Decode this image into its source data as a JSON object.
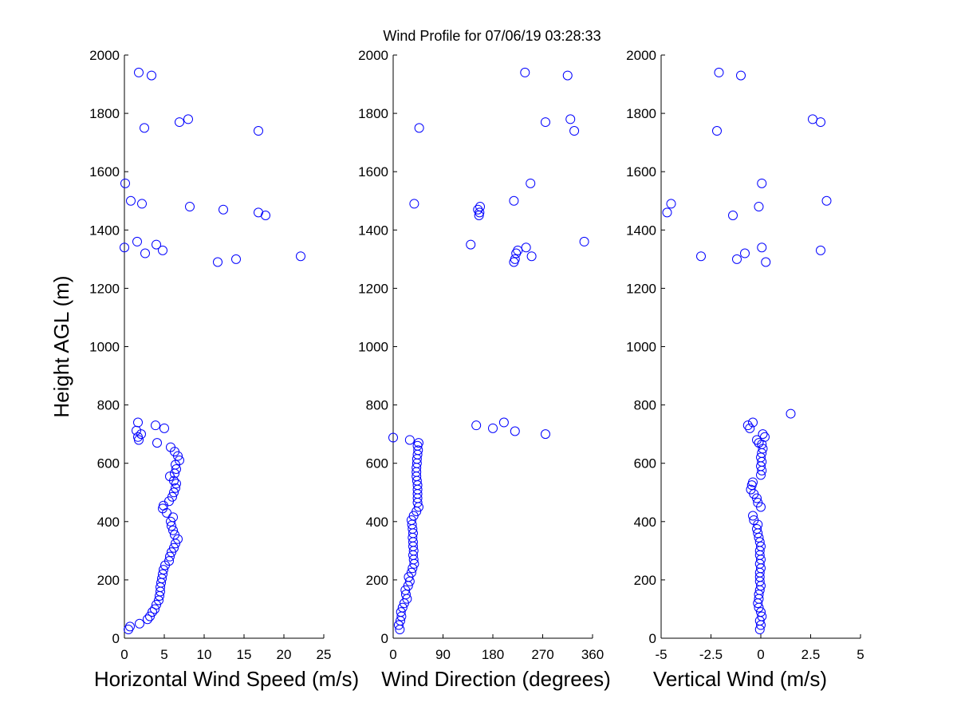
{
  "title": "Wind Profile for  07/06/19 03:28:33",
  "colors": {
    "marker": "#0000ff",
    "axis": "#000000",
    "background": "#ffffff"
  },
  "chart_data": [
    {
      "type": "scatter",
      "title": "",
      "xlabel": "Horizontal Wind Speed (m/s)",
      "ylabel": "Height AGL (m)",
      "xlim": [
        0,
        25
      ],
      "ylim": [
        0,
        2000
      ],
      "xticks": [
        0,
        5,
        10,
        15,
        20,
        25
      ],
      "xtick_labels": [
        "0",
        "5",
        "10",
        "15",
        "20",
        "25"
      ],
      "yticks": [
        0,
        200,
        400,
        600,
        800,
        1000,
        1200,
        1400,
        1600,
        1800,
        2000
      ],
      "ytick_labels": [
        "0",
        "200",
        "400",
        "600",
        "800",
        "1000",
        "1200",
        "1400",
        "1600",
        "1800",
        "2000"
      ],
      "grid": false,
      "marker": "open-circle",
      "points": [
        [
          0.5,
          30
        ],
        [
          0.7,
          40
        ],
        [
          1.9,
          50
        ],
        [
          2.9,
          65
        ],
        [
          3.2,
          75
        ],
        [
          3.5,
          90
        ],
        [
          3.8,
          100
        ],
        [
          4.0,
          115
        ],
        [
          4.3,
          130
        ],
        [
          4.4,
          145
        ],
        [
          4.5,
          160
        ],
        [
          4.5,
          175
        ],
        [
          4.6,
          190
        ],
        [
          4.7,
          205
        ],
        [
          4.8,
          220
        ],
        [
          4.9,
          235
        ],
        [
          5.1,
          250
        ],
        [
          5.6,
          265
        ],
        [
          5.7,
          280
        ],
        [
          5.9,
          295
        ],
        [
          6.2,
          310
        ],
        [
          6.4,
          325
        ],
        [
          6.7,
          340
        ],
        [
          6.3,
          355
        ],
        [
          6.1,
          370
        ],
        [
          5.9,
          385
        ],
        [
          5.8,
          400
        ],
        [
          6.1,
          415
        ],
        [
          5.3,
          430
        ],
        [
          4.8,
          445
        ],
        [
          4.9,
          455
        ],
        [
          5.6,
          470
        ],
        [
          6.0,
          485
        ],
        [
          6.2,
          500
        ],
        [
          6.4,
          515
        ],
        [
          6.5,
          530
        ],
        [
          6.2,
          540
        ],
        [
          5.7,
          555
        ],
        [
          6.3,
          565
        ],
        [
          6.5,
          580
        ],
        [
          6.4,
          595
        ],
        [
          6.9,
          610
        ],
        [
          6.7,
          625
        ],
        [
          6.3,
          640
        ],
        [
          5.8,
          655
        ],
        [
          1.8,
          680
        ],
        [
          1.7,
          690
        ],
        [
          2.1,
          700
        ],
        [
          1.5,
          712
        ],
        [
          5.0,
          720
        ],
        [
          3.9,
          730
        ],
        [
          1.7,
          740
        ],
        [
          4.1,
          670
        ],
        [
          0.0,
          1340
        ],
        [
          1.6,
          1360
        ],
        [
          2.6,
          1320
        ],
        [
          4.0,
          1350
        ],
        [
          4.8,
          1330
        ],
        [
          11.7,
          1290
        ],
        [
          14.0,
          1300
        ],
        [
          22.1,
          1310
        ],
        [
          8.2,
          1480
        ],
        [
          12.4,
          1470
        ],
        [
          16.8,
          1460
        ],
        [
          17.7,
          1450
        ],
        [
          2.2,
          1490
        ],
        [
          0.8,
          1500
        ],
        [
          0.1,
          1560
        ],
        [
          2.5,
          1750
        ],
        [
          6.9,
          1770
        ],
        [
          8.0,
          1780
        ],
        [
          16.8,
          1740
        ],
        [
          1.8,
          1940
        ],
        [
          3.4,
          1930
        ]
      ]
    },
    {
      "type": "scatter",
      "title": "",
      "xlabel": "Wind Direction (degrees)",
      "ylabel": "",
      "xlim": [
        0,
        360
      ],
      "ylim": [
        0,
        2000
      ],
      "xticks": [
        0,
        90,
        180,
        270,
        360
      ],
      "xtick_labels": [
        "0",
        "90",
        "180",
        "270",
        "360"
      ],
      "yticks": [
        0,
        200,
        400,
        600,
        800,
        1000,
        1200,
        1400,
        1600,
        1800,
        2000
      ],
      "ytick_labels": [
        "0",
        "200",
        "400",
        "600",
        "800",
        "1000",
        "1200",
        "1400",
        "1600",
        "1800",
        "2000"
      ],
      "grid": false,
      "marker": "open-circle",
      "points": [
        [
          12,
          30
        ],
        [
          10,
          45
        ],
        [
          13,
          60
        ],
        [
          15,
          75
        ],
        [
          14,
          90
        ],
        [
          17,
          105
        ],
        [
          20,
          120
        ],
        [
          25,
          135
        ],
        [
          23,
          150
        ],
        [
          22,
          165
        ],
        [
          27,
          180
        ],
        [
          30,
          195
        ],
        [
          28,
          210
        ],
        [
          33,
          225
        ],
        [
          35,
          240
        ],
        [
          38,
          255
        ],
        [
          37,
          270
        ],
        [
          36,
          285
        ],
        [
          37,
          300
        ],
        [
          36,
          315
        ],
        [
          36,
          330
        ],
        [
          35,
          345
        ],
        [
          36,
          360
        ],
        [
          35,
          375
        ],
        [
          34,
          390
        ],
        [
          33,
          405
        ],
        [
          37,
          420
        ],
        [
          42,
          435
        ],
        [
          46,
          450
        ],
        [
          44,
          465
        ],
        [
          44,
          480
        ],
        [
          44,
          495
        ],
        [
          44,
          510
        ],
        [
          44,
          525
        ],
        [
          43,
          540
        ],
        [
          42,
          555
        ],
        [
          42,
          570
        ],
        [
          42,
          585
        ],
        [
          43,
          600
        ],
        [
          43,
          615
        ],
        [
          44,
          630
        ],
        [
          45,
          645
        ],
        [
          44,
          660
        ],
        [
          46,
          670
        ],
        [
          30,
          680
        ],
        [
          0,
          688
        ],
        [
          150,
          730
        ],
        [
          180,
          720
        ],
        [
          200,
          740
        ],
        [
          220,
          710
        ],
        [
          275,
          700
        ],
        [
          140,
          1350
        ],
        [
          218,
          1290
        ],
        [
          220,
          1300
        ],
        [
          222,
          1320
        ],
        [
          225,
          1330
        ],
        [
          240,
          1340
        ],
        [
          250,
          1310
        ],
        [
          345,
          1360
        ],
        [
          155,
          1450
        ],
        [
          156,
          1460
        ],
        [
          153,
          1470
        ],
        [
          157,
          1480
        ],
        [
          38,
          1490
        ],
        [
          218,
          1500
        ],
        [
          248,
          1560
        ],
        [
          47,
          1750
        ],
        [
          275,
          1770
        ],
        [
          320,
          1780
        ],
        [
          327,
          1740
        ],
        [
          238,
          1940
        ],
        [
          315,
          1930
        ]
      ]
    },
    {
      "type": "scatter",
      "title": "",
      "xlabel": "Vertical Wind (m/s)",
      "ylabel": "",
      "xlim": [
        -5,
        5
      ],
      "ylim": [
        0,
        2000
      ],
      "xticks": [
        -5,
        -2.5,
        0,
        2.5,
        5
      ],
      "xtick_labels": [
        "-5",
        "-2.5",
        "0",
        "2.5",
        "5"
      ],
      "yticks": [
        0,
        200,
        400,
        600,
        800,
        1000,
        1200,
        1400,
        1600,
        1800,
        2000
      ],
      "ytick_labels": [
        "0",
        "200",
        "400",
        "600",
        "800",
        "1000",
        "1200",
        "1400",
        "1600",
        "1800",
        "2000"
      ],
      "grid": false,
      "marker": "open-circle",
      "points": [
        [
          -0.05,
          30
        ],
        [
          0.0,
          45
        ],
        [
          -0.05,
          60
        ],
        [
          0.05,
          75
        ],
        [
          0.0,
          90
        ],
        [
          -0.1,
          105
        ],
        [
          -0.15,
          120
        ],
        [
          -0.1,
          135
        ],
        [
          -0.1,
          150
        ],
        [
          -0.05,
          165
        ],
        [
          0.0,
          180
        ],
        [
          -0.05,
          195
        ],
        [
          -0.05,
          210
        ],
        [
          -0.05,
          225
        ],
        [
          0.0,
          240
        ],
        [
          -0.05,
          255
        ],
        [
          0.0,
          270
        ],
        [
          -0.05,
          285
        ],
        [
          -0.05,
          300
        ],
        [
          0.0,
          315
        ],
        [
          -0.05,
          330
        ],
        [
          -0.1,
          345
        ],
        [
          -0.15,
          360
        ],
        [
          -0.2,
          375
        ],
        [
          -0.15,
          390
        ],
        [
          -0.35,
          405
        ],
        [
          -0.4,
          420
        ],
        [
          0.0,
          450
        ],
        [
          -0.15,
          465
        ],
        [
          -0.2,
          480
        ],
        [
          -0.35,
          495
        ],
        [
          -0.5,
          510
        ],
        [
          -0.45,
          525
        ],
        [
          -0.4,
          535
        ],
        [
          0.0,
          560
        ],
        [
          0.05,
          575
        ],
        [
          0.0,
          590
        ],
        [
          0.05,
          605
        ],
        [
          0.0,
          620
        ],
        [
          0.05,
          635
        ],
        [
          0.1,
          650
        ],
        [
          0.05,
          665
        ],
        [
          0.2,
          690
        ],
        [
          0.1,
          700
        ],
        [
          -0.2,
          680
        ],
        [
          -0.55,
          720
        ],
        [
          -0.65,
          730
        ],
        [
          -0.4,
          740
        ],
        [
          -0.1,
          670
        ],
        [
          1.5,
          770
        ],
        [
          -3.0,
          1310
        ],
        [
          -1.2,
          1300
        ],
        [
          -0.8,
          1320
        ],
        [
          0.05,
          1340
        ],
        [
          0.25,
          1290
        ],
        [
          3.0,
          1330
        ],
        [
          -1.4,
          1450
        ],
        [
          -4.7,
          1460
        ],
        [
          -4.5,
          1490
        ],
        [
          -0.1,
          1480
        ],
        [
          3.3,
          1500
        ],
        [
          0.05,
          1560
        ],
        [
          -2.2,
          1740
        ],
        [
          2.6,
          1780
        ],
        [
          3.0,
          1770
        ],
        [
          -2.1,
          1940
        ],
        [
          -1.0,
          1930
        ]
      ]
    }
  ]
}
